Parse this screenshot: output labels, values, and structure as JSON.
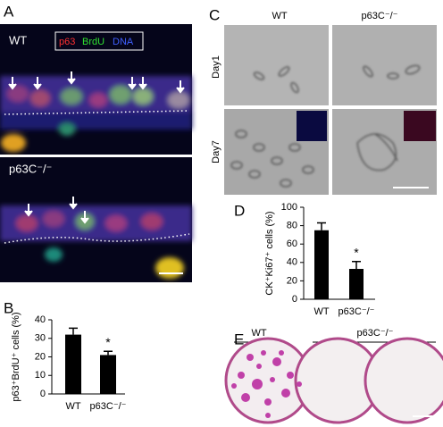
{
  "panels": {
    "A": {
      "label": "A",
      "wt": "WT",
      "ko": "p63C⁻/⁻",
      "legend": [
        "p63",
        "BrdU",
        "DNA"
      ]
    },
    "C": {
      "label": "C",
      "columns": [
        "WT",
        "p63C⁻/⁻"
      ],
      "rows": [
        "Day1",
        "Day7"
      ]
    },
    "E": {
      "label": "E",
      "groups": [
        "WT",
        "p63C⁻/⁻"
      ]
    }
  },
  "chart_data": [
    {
      "type": "bar",
      "panel_label": "B",
      "y_label": "p63⁺BrdU⁺ cells (%)",
      "categories": [
        "WT",
        "p63C⁻/⁻"
      ],
      "values": [
        32,
        21
      ],
      "errors": [
        3.5,
        2
      ],
      "annotation": "*",
      "color": "#000000",
      "ylim": [
        0,
        40
      ],
      "yticks": [
        0,
        10,
        20,
        30,
        40
      ]
    },
    {
      "type": "bar",
      "panel_label": "D",
      "y_label": "CK⁺Ki67⁺ cells (%)",
      "categories": [
        "WT",
        "p63C⁻/⁻"
      ],
      "values": [
        75,
        33
      ],
      "errors": [
        8,
        8
      ],
      "annotation": "*",
      "color": "#000000",
      "ylim": [
        0,
        100
      ],
      "yticks": [
        0,
        20,
        40,
        60,
        80,
        100
      ]
    }
  ]
}
